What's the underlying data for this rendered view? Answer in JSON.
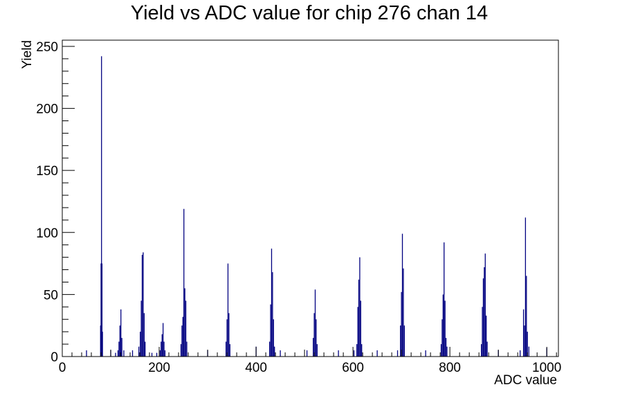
{
  "chart_data": {
    "type": "bar",
    "title": "Yield vs ADC value for chip 276 chan 14",
    "xlabel": "ADC value",
    "ylabel": "Yield",
    "xlim": [
      0,
      1024
    ],
    "ylim": [
      0,
      255
    ],
    "grid": false,
    "legend": "none",
    "color": "#000080",
    "x_ticks": [
      0,
      200,
      400,
      600,
      800,
      1000
    ],
    "y_ticks": [
      0,
      50,
      100,
      150,
      200,
      250
    ],
    "bins": [
      {
        "x": 50,
        "y": 5
      },
      {
        "x": 79,
        "y": 25
      },
      {
        "x": 80,
        "y": 75
      },
      {
        "x": 81,
        "y": 242
      },
      {
        "x": 82,
        "y": 75
      },
      {
        "x": 83,
        "y": 20
      },
      {
        "x": 100,
        "y": 5
      },
      {
        "x": 110,
        "y": 3
      },
      {
        "x": 115,
        "y": 5
      },
      {
        "x": 117,
        "y": 12
      },
      {
        "x": 119,
        "y": 25
      },
      {
        "x": 121,
        "y": 38
      },
      {
        "x": 123,
        "y": 15
      },
      {
        "x": 127,
        "y": 5
      },
      {
        "x": 145,
        "y": 5
      },
      {
        "x": 158,
        "y": 8
      },
      {
        "x": 161,
        "y": 20
      },
      {
        "x": 163,
        "y": 45
      },
      {
        "x": 165,
        "y": 82
      },
      {
        "x": 167,
        "y": 84
      },
      {
        "x": 169,
        "y": 35
      },
      {
        "x": 171,
        "y": 12
      },
      {
        "x": 185,
        "y": 3
      },
      {
        "x": 195,
        "y": 3
      },
      {
        "x": 202,
        "y": 5
      },
      {
        "x": 204,
        "y": 12
      },
      {
        "x": 206,
        "y": 18
      },
      {
        "x": 208,
        "y": 27
      },
      {
        "x": 210,
        "y": 12
      },
      {
        "x": 212,
        "y": 5
      },
      {
        "x": 245,
        "y": 10
      },
      {
        "x": 247,
        "y": 25
      },
      {
        "x": 249,
        "y": 32
      },
      {
        "x": 251,
        "y": 119
      },
      {
        "x": 253,
        "y": 55
      },
      {
        "x": 255,
        "y": 45
      },
      {
        "x": 257,
        "y": 12
      },
      {
        "x": 300,
        "y": 5
      },
      {
        "x": 338,
        "y": 12
      },
      {
        "x": 340,
        "y": 30
      },
      {
        "x": 342,
        "y": 75
      },
      {
        "x": 344,
        "y": 35
      },
      {
        "x": 346,
        "y": 10
      },
      {
        "x": 400,
        "y": 8
      },
      {
        "x": 428,
        "y": 12
      },
      {
        "x": 430,
        "y": 42
      },
      {
        "x": 432,
        "y": 87
      },
      {
        "x": 434,
        "y": 68
      },
      {
        "x": 436,
        "y": 30
      },
      {
        "x": 438,
        "y": 8
      },
      {
        "x": 450,
        "y": 5
      },
      {
        "x": 505,
        "y": 5
      },
      {
        "x": 518,
        "y": 15
      },
      {
        "x": 520,
        "y": 35
      },
      {
        "x": 522,
        "y": 54
      },
      {
        "x": 524,
        "y": 30
      },
      {
        "x": 526,
        "y": 10
      },
      {
        "x": 570,
        "y": 5
      },
      {
        "x": 602,
        "y": 5
      },
      {
        "x": 608,
        "y": 10
      },
      {
        "x": 610,
        "y": 40
      },
      {
        "x": 612,
        "y": 62
      },
      {
        "x": 614,
        "y": 80
      },
      {
        "x": 616,
        "y": 45
      },
      {
        "x": 618,
        "y": 10
      },
      {
        "x": 650,
        "y": 5
      },
      {
        "x": 692,
        "y": 5
      },
      {
        "x": 698,
        "y": 25
      },
      {
        "x": 700,
        "y": 52
      },
      {
        "x": 702,
        "y": 99
      },
      {
        "x": 704,
        "y": 71
      },
      {
        "x": 706,
        "y": 25
      },
      {
        "x": 750,
        "y": 5
      },
      {
        "x": 782,
        "y": 10
      },
      {
        "x": 784,
        "y": 30
      },
      {
        "x": 786,
        "y": 50
      },
      {
        "x": 788,
        "y": 92
      },
      {
        "x": 790,
        "y": 45
      },
      {
        "x": 792,
        "y": 15
      },
      {
        "x": 794,
        "y": 8
      },
      {
        "x": 865,
        "y": 10
      },
      {
        "x": 867,
        "y": 40
      },
      {
        "x": 869,
        "y": 63
      },
      {
        "x": 871,
        "y": 72
      },
      {
        "x": 873,
        "y": 83
      },
      {
        "x": 875,
        "y": 33
      },
      {
        "x": 877,
        "y": 12
      },
      {
        "x": 900,
        "y": 5
      },
      {
        "x": 945,
        "y": 5
      },
      {
        "x": 952,
        "y": 38
      },
      {
        "x": 954,
        "y": 25
      },
      {
        "x": 956,
        "y": 112
      },
      {
        "x": 958,
        "y": 65
      },
      {
        "x": 960,
        "y": 20
      },
      {
        "x": 963,
        "y": 8
      },
      {
        "x": 1000,
        "y": 7
      }
    ]
  }
}
